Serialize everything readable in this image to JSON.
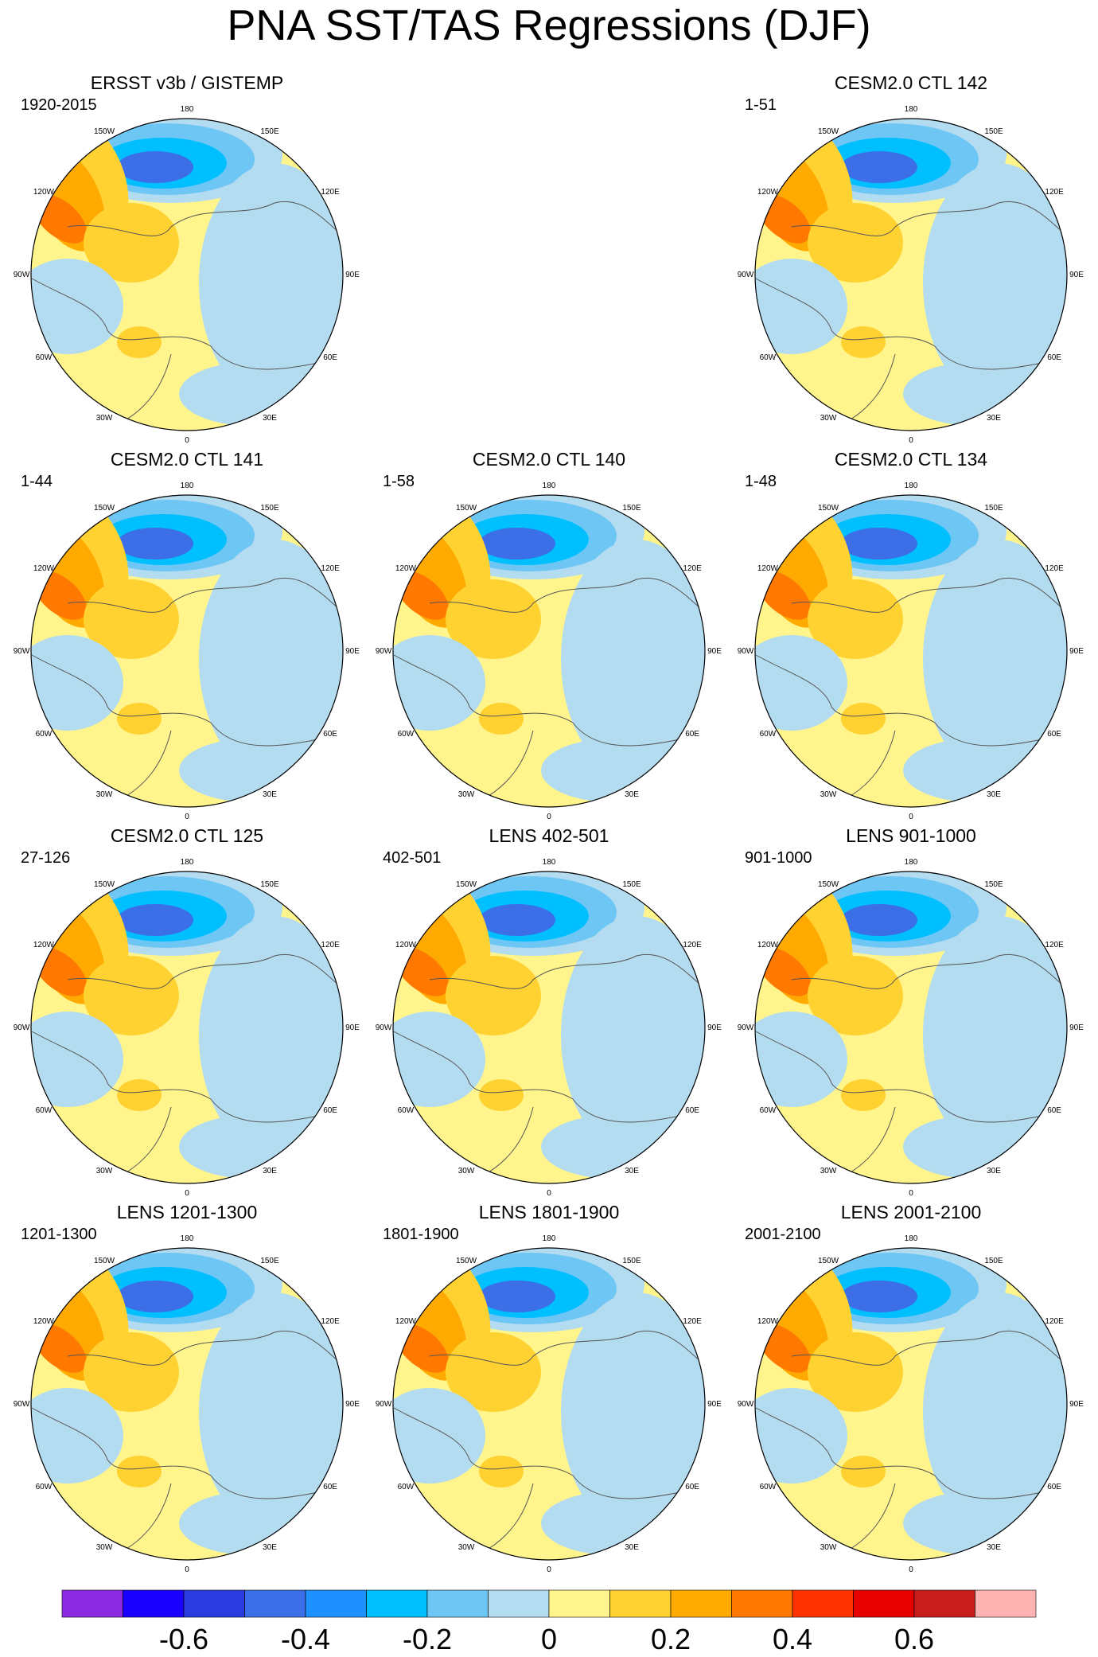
{
  "title": "PNA SST/TAS Regressions (DJF)",
  "longitude_labels": [
    "180",
    "150E",
    "120E",
    "90E",
    "60E",
    "30E",
    "0",
    "30W",
    "60W",
    "90W",
    "120W",
    "150W"
  ],
  "panels": [
    {
      "title": "ERSST v3b / GISTEMP",
      "label": "1920-2015"
    },
    {
      "title": "CESM2.0 CTL 142",
      "label": "1-51"
    },
    {
      "title": "CESM2.0 CTL 141",
      "label": "1-44"
    },
    {
      "title": "CESM2.0 CTL 140",
      "label": "1-58"
    },
    {
      "title": "CESM2.0 CTL 134",
      "label": "1-48"
    },
    {
      "title": "CESM2.0 CTL 125",
      "label": "27-126"
    },
    {
      "title": "LENS 402-501",
      "label": "402-501"
    },
    {
      "title": "LENS 901-1000",
      "label": "901-1000"
    },
    {
      "title": "LENS 1201-1300",
      "label": "1201-1300"
    },
    {
      "title": "LENS 1801-1900",
      "label": "1801-1900"
    },
    {
      "title": "LENS 2001-2100",
      "label": "2001-2100"
    }
  ],
  "colorbar": {
    "colors": [
      "#8a2be2",
      "#1a00ff",
      "#2a3ce0",
      "#3c6ee8",
      "#1e90ff",
      "#00bfff",
      "#6ec6f5",
      "#b4dcf0",
      "#fff58c",
      "#ffd232",
      "#ffaa00",
      "#ff7800",
      "#ff3200",
      "#e60000",
      "#c81e1e",
      "#ffb4b4"
    ],
    "tick_labels": [
      "-0.6",
      "-0.4",
      "-0.2",
      "0",
      "0.2",
      "0.4",
      "0.6"
    ],
    "tick_values": [
      -0.6,
      -0.4,
      -0.2,
      0,
      0.2,
      0.4,
      0.6
    ]
  }
}
